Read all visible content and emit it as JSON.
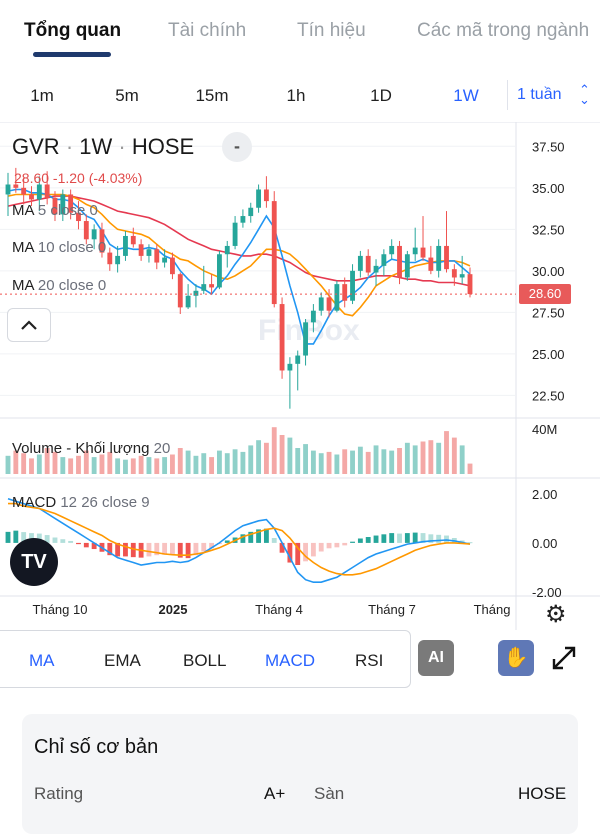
{
  "tabs": [
    {
      "label": "Tổng quan",
      "active": true
    },
    {
      "label": "Tài chính",
      "active": false
    },
    {
      "label": "Tín hiệu",
      "active": false
    },
    {
      "label": "Các mã trong ngành",
      "active": false
    }
  ],
  "intervals": {
    "items": [
      "1m",
      "5m",
      "15m",
      "1h",
      "1D",
      "1W"
    ],
    "active": "1W",
    "select_label": "1 tuần"
  },
  "symbol": {
    "ticker": "GVR",
    "interval": "1W",
    "exchange": "HOSE",
    "price_change": "28.60 -1.20 (-4.03%)",
    "minus_label": "-"
  },
  "legends": {
    "ma5": {
      "name": "MA",
      "params": "5 close 0"
    },
    "ma10": {
      "name": "MA",
      "params": "10 close 0"
    },
    "ma20": {
      "name": "MA",
      "params": "20 close 0"
    },
    "volume": {
      "name": "Volume - Khối lượng",
      "params": "20"
    },
    "macd": {
      "name": "MACD",
      "params": "12 26 close 9"
    }
  },
  "price_axis": {
    "ticks": [
      "37.50",
      "35.00",
      "32.50",
      "30.00",
      "27.50",
      "25.00",
      "22.50"
    ],
    "last_price": "28.60"
  },
  "volume_axis": {
    "tick": "40M"
  },
  "macd_axis": {
    "ticks": [
      "2.00",
      "0.00",
      "-2.00"
    ]
  },
  "time_axis": {
    "ticks": [
      "Tháng 10",
      "2025",
      "Tháng 4",
      "Tháng 7",
      "Tháng"
    ]
  },
  "watermark": "FinBox",
  "colors": {
    "up": "#26a69a",
    "down": "#ef5350",
    "ma5": "#2196f3",
    "ma10": "#ff9800",
    "ma20": "#e53950",
    "accent": "#2962ff"
  },
  "chart_data": {
    "type": "candlestick",
    "interval": "1W",
    "ylim": [
      21.5,
      38.0
    ],
    "candles": [
      [
        34.6,
        35.9,
        33.3,
        35.2
      ],
      [
        35.2,
        36.2,
        34.7,
        35.0
      ],
      [
        35.0,
        35.6,
        34.0,
        34.6
      ],
      [
        34.6,
        35.1,
        33.9,
        34.3
      ],
      [
        34.3,
        35.7,
        33.6,
        35.2
      ],
      [
        35.2,
        36.0,
        34.0,
        34.4
      ],
      [
        34.4,
        34.8,
        33.0,
        33.4
      ],
      [
        33.4,
        34.9,
        33.0,
        34.6
      ],
      [
        34.6,
        34.9,
        33.1,
        33.5
      ],
      [
        33.5,
        34.2,
        32.5,
        33.0
      ],
      [
        33.0,
        33.4,
        31.6,
        31.9
      ],
      [
        31.9,
        32.8,
        31.3,
        32.5
      ],
      [
        32.5,
        32.9,
        30.8,
        31.1
      ],
      [
        31.1,
        31.4,
        30.0,
        30.4
      ],
      [
        30.4,
        31.5,
        29.9,
        30.9
      ],
      [
        30.9,
        32.4,
        30.6,
        32.1
      ],
      [
        32.1,
        32.6,
        31.4,
        31.6
      ],
      [
        31.6,
        31.9,
        30.6,
        30.9
      ],
      [
        30.9,
        31.6,
        30.5,
        31.3
      ],
      [
        31.3,
        31.6,
        30.1,
        30.5
      ],
      [
        30.5,
        31.3,
        30.2,
        30.8
      ],
      [
        30.8,
        31.1,
        29.5,
        29.8
      ],
      [
        29.8,
        29.9,
        27.4,
        27.8
      ],
      [
        27.8,
        29.2,
        27.7,
        28.5
      ],
      [
        28.5,
        29.2,
        27.8,
        28.8
      ],
      [
        28.8,
        30.3,
        28.6,
        29.2
      ],
      [
        29.2,
        29.8,
        28.6,
        29.0
      ],
      [
        29.0,
        31.2,
        28.9,
        31.0
      ],
      [
        31.0,
        31.8,
        30.2,
        31.5
      ],
      [
        31.5,
        33.3,
        31.3,
        32.9
      ],
      [
        32.9,
        33.7,
        32.6,
        33.3
      ],
      [
        33.3,
        34.1,
        32.9,
        33.8
      ],
      [
        33.8,
        35.2,
        33.5,
        34.9
      ],
      [
        34.9,
        35.7,
        33.8,
        34.2
      ],
      [
        34.2,
        34.8,
        27.8,
        28.0
      ],
      [
        28.0,
        28.4,
        23.5,
        24.0
      ],
      [
        24.0,
        24.8,
        21.7,
        24.4
      ],
      [
        24.4,
        25.2,
        22.8,
        24.9
      ],
      [
        24.9,
        27.1,
        24.3,
        26.9
      ],
      [
        26.9,
        28.0,
        26.3,
        27.6
      ],
      [
        27.6,
        28.7,
        27.3,
        28.4
      ],
      [
        28.4,
        28.9,
        27.2,
        27.6
      ],
      [
        27.6,
        29.4,
        27.5,
        29.2
      ],
      [
        29.2,
        29.6,
        27.8,
        28.2
      ],
      [
        28.2,
        30.4,
        28.0,
        30.0
      ],
      [
        30.0,
        31.2,
        29.6,
        30.9
      ],
      [
        30.9,
        31.3,
        29.7,
        29.9
      ],
      [
        29.9,
        30.7,
        29.1,
        30.3
      ],
      [
        30.3,
        31.3,
        29.7,
        31.0
      ],
      [
        31.0,
        31.9,
        30.7,
        31.5
      ],
      [
        31.5,
        31.8,
        29.2,
        29.6
      ],
      [
        29.6,
        31.2,
        29.4,
        31.0
      ],
      [
        31.0,
        32.6,
        30.6,
        31.4
      ],
      [
        31.4,
        33.3,
        30.6,
        30.8
      ],
      [
        30.8,
        31.5,
        29.8,
        30.0
      ],
      [
        30.0,
        31.9,
        29.6,
        31.5
      ],
      [
        31.5,
        33.6,
        29.9,
        30.1
      ],
      [
        30.1,
        30.4,
        29.1,
        29.6
      ],
      [
        29.6,
        30.9,
        29.2,
        29.8
      ],
      [
        29.8,
        30.2,
        28.4,
        28.6
      ]
    ],
    "ma5": [
      34.8,
      34.9,
      34.9,
      34.7,
      34.7,
      34.6,
      34.3,
      34.3,
      34.2,
      33.8,
      33.3,
      33.1,
      32.4,
      31.6,
      31.3,
      31.4,
      31.3,
      31.3,
      31.4,
      31.3,
      30.9,
      30.7,
      30.0,
      29.5,
      29.1,
      28.9,
      28.6,
      29.2,
      29.7,
      30.4,
      31.0,
      31.7,
      32.5,
      33.3,
      32.6,
      30.9,
      29.1,
      27.5,
      25.6,
      25.6,
      26.4,
      27.3,
      28.0,
      28.3,
      28.6,
      29.0,
      29.6,
      30.0,
      30.4,
      30.7,
      30.6,
      30.5,
      30.5,
      30.7,
      30.5,
      30.5,
      30.6,
      30.6,
      30.2,
      29.8
    ],
    "ma10": [
      34.5,
      34.6,
      34.6,
      34.6,
      34.6,
      34.6,
      34.6,
      34.6,
      34.5,
      34.3,
      34.0,
      33.8,
      33.4,
      32.9,
      32.5,
      32.4,
      32.3,
      32.2,
      32.0,
      31.6,
      31.2,
      31.0,
      30.7,
      30.6,
      30.3,
      30.0,
      29.8,
      29.6,
      29.5,
      29.7,
      30.0,
      30.3,
      30.8,
      31.3,
      31.3,
      31.2,
      31.0,
      30.6,
      30.1,
      29.6,
      29.1,
      28.5,
      27.9,
      27.4,
      27.3,
      27.8,
      28.4,
      29.1,
      29.4,
      29.7,
      29.9,
      30.1,
      30.3,
      30.4,
      30.5,
      30.6,
      30.6,
      30.6,
      30.5,
      30.3
    ],
    "ma20": [
      33.9,
      34.0,
      34.1,
      34.2,
      34.3,
      34.4,
      34.5,
      34.5,
      34.5,
      34.4,
      34.3,
      34.2,
      34.0,
      33.8,
      33.6,
      33.5,
      33.4,
      33.3,
      33.2,
      33.0,
      32.8,
      32.5,
      32.2,
      31.9,
      31.7,
      31.5,
      31.3,
      31.2,
      31.1,
      31.0,
      30.9,
      30.9,
      31.0,
      31.0,
      30.9,
      30.7,
      30.5,
      30.2,
      29.9,
      29.7,
      29.6,
      29.5,
      29.4,
      29.4,
      29.4,
      29.5,
      29.6,
      29.7,
      29.7,
      29.7,
      29.6,
      29.5,
      29.5,
      29.4,
      29.4,
      29.3,
      29.3,
      29.3,
      29.2,
      29.1
    ],
    "volume": [
      14,
      18,
      16,
      12,
      15,
      20,
      17,
      13,
      12,
      14,
      18,
      13,
      15,
      17,
      12,
      11,
      12,
      14,
      13,
      12,
      13,
      15,
      20,
      18,
      14,
      16,
      13,
      18,
      16,
      19,
      17,
      22,
      26,
      24,
      36,
      30,
      28,
      20,
      23,
      18,
      16,
      17,
      15,
      19,
      18,
      21,
      17,
      22,
      19,
      18,
      20,
      24,
      22,
      25,
      26,
      24,
      33,
      28,
      22,
      8
    ],
    "macd_hist": [
      0.45,
      0.5,
      0.44,
      0.4,
      0.38,
      0.32,
      0.22,
      0.15,
      0.08,
      -0.05,
      -0.18,
      -0.25,
      -0.36,
      -0.5,
      -0.55,
      -0.55,
      -0.58,
      -0.6,
      -0.55,
      -0.5,
      -0.48,
      -0.45,
      -0.6,
      -0.62,
      -0.5,
      -0.35,
      -0.22,
      -0.05,
      0.1,
      0.22,
      0.35,
      0.45,
      0.55,
      0.58,
      0.2,
      -0.4,
      -0.8,
      -0.9,
      -0.75,
      -0.55,
      -0.35,
      -0.22,
      -0.18,
      -0.1,
      0.05,
      0.18,
      0.24,
      0.3,
      0.35,
      0.4,
      0.38,
      0.4,
      0.42,
      0.4,
      0.35,
      0.33,
      0.3,
      0.2,
      0.1,
      0.03
    ],
    "macd_line": [
      1.8,
      1.7,
      1.6,
      1.5,
      1.4,
      1.2,
      1.0,
      0.8,
      0.6,
      0.4,
      0.2,
      0.0,
      -0.2,
      -0.4,
      -0.6,
      -0.7,
      -0.8,
      -0.9,
      -0.85,
      -0.8,
      -0.8,
      -0.75,
      -0.8,
      -0.75,
      -0.6,
      -0.4,
      -0.2,
      0.0,
      0.25,
      0.5,
      0.7,
      0.8,
      0.9,
      0.95,
      0.6,
      0.0,
      -0.6,
      -1.2,
      -1.5,
      -1.6,
      -1.6,
      -1.5,
      -1.4,
      -1.2,
      -1.0,
      -0.8,
      -0.6,
      -0.45,
      -0.35,
      -0.25,
      -0.15,
      -0.05,
      0.0,
      0.05,
      0.08,
      0.1,
      0.12,
      0.08,
      0.02,
      -0.05
    ],
    "signal_line": [
      1.6,
      1.6,
      1.5,
      1.45,
      1.4,
      1.3,
      1.2,
      1.05,
      0.9,
      0.75,
      0.6,
      0.45,
      0.3,
      0.1,
      -0.05,
      -0.15,
      -0.25,
      -0.3,
      -0.35,
      -0.4,
      -0.45,
      -0.48,
      -0.5,
      -0.5,
      -0.45,
      -0.4,
      -0.3,
      -0.2,
      -0.05,
      0.1,
      0.25,
      0.35,
      0.45,
      0.55,
      0.6,
      0.5,
      0.2,
      -0.2,
      -0.55,
      -0.8,
      -1.0,
      -1.15,
      -1.25,
      -1.3,
      -1.3,
      -1.25,
      -1.15,
      -1.05,
      -0.9,
      -0.75,
      -0.6,
      -0.45,
      -0.3,
      -0.2,
      -0.1,
      -0.05,
      0.0,
      0.0,
      -0.02,
      -0.05
    ],
    "volume_max": 40,
    "macd_range": [
      -2.0,
      2.4
    ]
  },
  "indicators": {
    "items": [
      "MA",
      "EMA",
      "BOLL",
      "MACD",
      "RSI"
    ],
    "active": [
      "MA",
      "MACD"
    ],
    "ai_label": "AI"
  },
  "fundamentals": {
    "title": "Chỉ số cơ bản",
    "rating_label": "Rating",
    "rating_value": "A+",
    "exchange_label": "Sàn",
    "exchange_value": "HOSE"
  }
}
